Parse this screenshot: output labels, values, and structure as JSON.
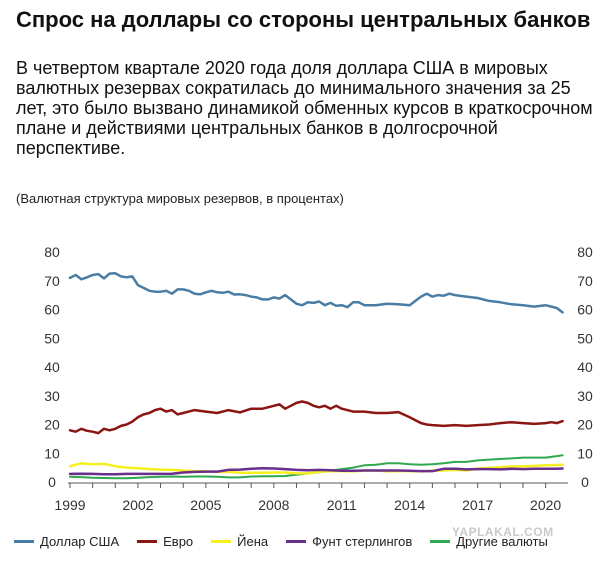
{
  "header": {
    "title": "Спрос на доллары со стороны центральных банков",
    "description": "В четвертом квартале 2020 года доля доллара США в мировых валютных резервах сократилась до минимального значения за 25 лет, это было вызвано динамикой обменных курсов в краткосрочном плане и действиями центральных банков в долгосрочной перспективе.",
    "note": "(Валютная структура мировых резервов, в процентах)"
  },
  "watermark": "YAPLAKAL.COM",
  "chart_data": {
    "type": "line",
    "title": "Спрос на доллары со стороны центральных банков",
    "xlim": [
      1999,
      2020.9
    ],
    "ylim": [
      0,
      80
    ],
    "x_ticks": [
      "1999",
      "2002",
      "2005",
      "2008",
      "2011",
      "2014",
      "2017",
      "2020"
    ],
    "y_ticks": [
      "0",
      "10",
      "20",
      "30",
      "40",
      "50",
      "60",
      "70",
      "80"
    ],
    "grid": false,
    "legend_position": "bottom",
    "series": [
      {
        "name": "Доллар США",
        "color": "#4a7da3",
        "x": [
          1999,
          1999.25,
          1999.5,
          1999.75,
          2000,
          2000.25,
          2000.5,
          2000.75,
          2001,
          2001.25,
          2001.5,
          2001.75,
          2002,
          2002.25,
          2002.5,
          2002.75,
          2003,
          2003.25,
          2003.5,
          2003.75,
          2004,
          2004.25,
          2004.5,
          2004.75,
          2005,
          2005.25,
          2005.5,
          2005.75,
          2006,
          2006.25,
          2006.5,
          2006.75,
          2007,
          2007.25,
          2007.5,
          2007.75,
          2008,
          2008.25,
          2008.5,
          2008.75,
          2009,
          2009.25,
          2009.5,
          2009.75,
          2010,
          2010.25,
          2010.5,
          2010.75,
          2011,
          2011.25,
          2011.5,
          2011.75,
          2012,
          2012.5,
          2013,
          2013.5,
          2014,
          2014.25,
          2014.5,
          2014.75,
          2015,
          2015.25,
          2015.5,
          2015.75,
          2016,
          2016.5,
          2017,
          2017.5,
          2018,
          2018.5,
          2019,
          2019.5,
          2020,
          2020.25,
          2020.5,
          2020.75
        ],
        "values": [
          71,
          72,
          70.5,
          71.2,
          72,
          72.3,
          70.8,
          72.5,
          72.6,
          71.5,
          71.2,
          71.5,
          68.5,
          67.5,
          66.5,
          66.2,
          66.2,
          66.5,
          65.5,
          67,
          67,
          66.5,
          65.5,
          65.3,
          66,
          66.5,
          66,
          65.8,
          66.2,
          65.2,
          65.3,
          65,
          64.5,
          64.2,
          63.5,
          63.5,
          64.2,
          63.8,
          65,
          63.5,
          62,
          61.5,
          62.5,
          62.3,
          62.8,
          61.5,
          62.3,
          61.3,
          61.5,
          60.8,
          62.5,
          62.5,
          61.5,
          61.5,
          62,
          61.8,
          61.5,
          63,
          64.5,
          65.5,
          64.5,
          65,
          64.8,
          65.5,
          65,
          64.5,
          64,
          63,
          62.5,
          61.8,
          61.5,
          61,
          61.5,
          61,
          60.5,
          59
        ],
        "line_width": 2.5
      },
      {
        "name": "Евро",
        "color": "#8b1512",
        "x": [
          1999,
          1999.25,
          1999.5,
          1999.75,
          2000,
          2000.25,
          2000.5,
          2000.75,
          2001,
          2001.25,
          2001.5,
          2001.75,
          2002,
          2002.25,
          2002.5,
          2002.75,
          2003,
          2003.25,
          2003.5,
          2003.75,
          2004,
          2004.5,
          2005,
          2005.5,
          2006,
          2006.5,
          2007,
          2007.5,
          2008,
          2008.25,
          2008.5,
          2008.75,
          2009,
          2009.25,
          2009.5,
          2009.75,
          2010,
          2010.25,
          2010.5,
          2010.75,
          2011,
          2011.5,
          2012,
          2012.5,
          2013,
          2013.5,
          2014,
          2014.25,
          2014.5,
          2014.75,
          2015,
          2015.5,
          2016,
          2016.5,
          2017,
          2017.5,
          2018,
          2018.5,
          2019,
          2019.5,
          2020,
          2020.25,
          2020.5,
          2020.75
        ],
        "values": [
          18,
          17.5,
          18.5,
          17.8,
          17.5,
          17,
          18.5,
          18,
          18.5,
          19.5,
          20,
          21,
          22.5,
          23.5,
          24,
          25,
          25.5,
          24.5,
          25,
          23.5,
          24,
          25,
          24.5,
          24,
          25,
          24.2,
          25.5,
          25.5,
          26.5,
          27,
          25.5,
          26.5,
          27.5,
          28,
          27.5,
          26.5,
          26,
          26.5,
          25.5,
          26.5,
          25.5,
          24.5,
          24.5,
          24,
          24,
          24.3,
          22.5,
          21.5,
          20.5,
          20,
          19.8,
          19.5,
          19.8,
          19.5,
          19.8,
          20,
          20.5,
          20.8,
          20.5,
          20.2,
          20.5,
          20.8,
          20.5,
          21.2
        ],
        "line_width": 2.5
      },
      {
        "name": "Йена",
        "color": "#f5ef1f",
        "x": [
          1999,
          1999.5,
          2000,
          2000.5,
          2001,
          2001.5,
          2002,
          2002.5,
          2003,
          2003.5,
          2004,
          2004.5,
          2005,
          2005.5,
          2006,
          2006.5,
          2007,
          2007.5,
          2008,
          2008.5,
          2009,
          2009.5,
          2010,
          2010.5,
          2011,
          2011.5,
          2012,
          2012.5,
          2013,
          2013.5,
          2014,
          2014.5,
          2015,
          2015.5,
          2016,
          2016.5,
          2017,
          2017.5,
          2018,
          2018.5,
          2019,
          2019.5,
          2020,
          2020.5,
          2020.75
        ],
        "values": [
          5.5,
          6.5,
          6.2,
          6.3,
          5.5,
          5,
          4.8,
          4.5,
          4.3,
          4.2,
          4,
          3.8,
          3.7,
          3.5,
          3.5,
          3.2,
          3.2,
          3.2,
          3.3,
          3.3,
          3,
          3,
          3.5,
          3.8,
          3.8,
          3.7,
          4,
          4,
          3.7,
          3.8,
          3.8,
          3.7,
          3.9,
          4,
          4.2,
          4,
          4.7,
          4.9,
          5.2,
          5.4,
          5.5,
          5.6,
          5.8,
          5.9,
          6
        ],
        "line_width": 2.5
      },
      {
        "name": "Фунт стерлингов",
        "color": "#6a2e8c",
        "x": [
          1999,
          1999.5,
          2000,
          2000.5,
          2001,
          2001.5,
          2002,
          2002.5,
          2003,
          2003.5,
          2004,
          2004.5,
          2005,
          2005.5,
          2006,
          2006.5,
          2007,
          2007.5,
          2008,
          2008.5,
          2009,
          2009.5,
          2010,
          2010.5,
          2011,
          2011.5,
          2012,
          2012.5,
          2013,
          2013.5,
          2014,
          2014.5,
          2015,
          2015.5,
          2016,
          2016.5,
          2017,
          2017.5,
          2018,
          2018.5,
          2019,
          2019.5,
          2020,
          2020.5,
          2020.75
        ],
        "values": [
          2.8,
          2.9,
          2.8,
          2.7,
          2.7,
          2.8,
          2.8,
          2.8,
          2.8,
          2.9,
          3.3,
          3.5,
          3.6,
          3.6,
          4.2,
          4.3,
          4.6,
          4.8,
          4.7,
          4.5,
          4.2,
          4.1,
          4.2,
          4.1,
          3.9,
          3.9,
          4,
          4,
          4,
          4,
          3.9,
          3.8,
          3.8,
          4.6,
          4.6,
          4.4,
          4.5,
          4.5,
          4.4,
          4.6,
          4.5,
          4.6,
          4.6,
          4.6,
          4.7
        ],
        "line_width": 2.5
      },
      {
        "name": "Другие валюты",
        "color": "#2fa84f",
        "x": [
          1999,
          1999.5,
          2000,
          2000.5,
          2001,
          2001.5,
          2002,
          2002.5,
          2003,
          2003.5,
          2004,
          2004.5,
          2005,
          2005.5,
          2006,
          2006.5,
          2007,
          2007.5,
          2008,
          2008.5,
          2009,
          2009.5,
          2010,
          2010.5,
          2011,
          2011.5,
          2012,
          2012.5,
          2013,
          2013.5,
          2014,
          2014.5,
          2015,
          2015.5,
          2016,
          2016.5,
          2017,
          2017.5,
          2018,
          2018.5,
          2019,
          2019.5,
          2020,
          2020.5,
          2020.75
        ],
        "values": [
          1.8,
          1.7,
          1.5,
          1.4,
          1.3,
          1.3,
          1.5,
          1.7,
          1.8,
          1.9,
          1.8,
          1.9,
          1.9,
          1.8,
          1.6,
          1.6,
          1.9,
          2,
          2,
          2.1,
          2.5,
          3,
          3.4,
          4,
          4.5,
          5,
          5.8,
          6,
          6.5,
          6.5,
          6.2,
          6,
          6.2,
          6.5,
          7,
          7,
          7.5,
          7.8,
          8,
          8.2,
          8.5,
          8.5,
          8.5,
          9,
          9.3
        ],
        "line_width": 2
      }
    ]
  }
}
